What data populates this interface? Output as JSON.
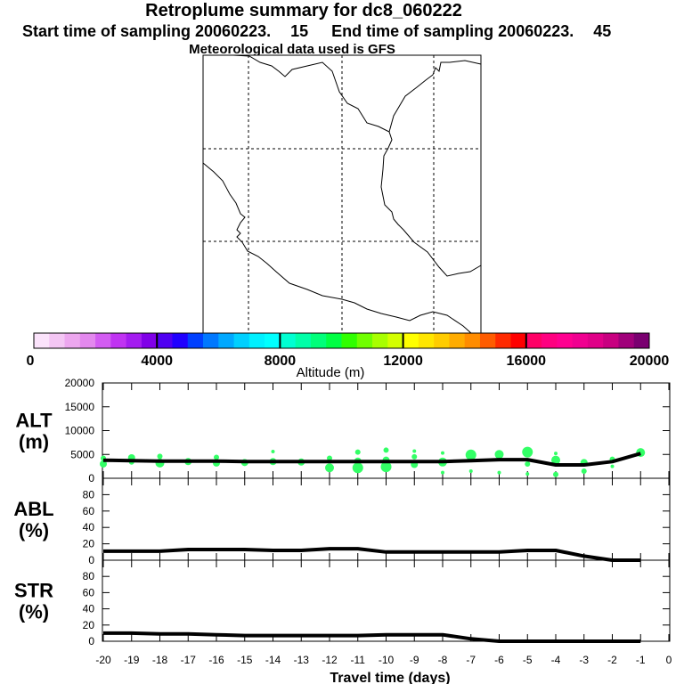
{
  "header": {
    "title": "Retroplume summary for dc8_060222",
    "start_label": "Start time of sampling 20060223.",
    "start_value": "15",
    "end_label": "End time of sampling 20060223.",
    "end_value": "45",
    "met_label": "Meteorological data used is GFS"
  },
  "colorbar": {
    "title": "Altitude (m)",
    "ticks": [
      "0",
      "4000",
      "8000",
      "12000",
      "16000",
      "20000"
    ],
    "colors": [
      "#fbe3fb",
      "#f4c6f4",
      "#eda7ef",
      "#e388ee",
      "#d35cf2",
      "#c033f2",
      "#a41cf0",
      "#8000e8",
      "#4f00f2",
      "#2000ff",
      "#0040ff",
      "#0078ff",
      "#00a8ff",
      "#00d0ff",
      "#00f0ff",
      "#00ffff",
      "#00ffd2",
      "#00ffa8",
      "#00ff7a",
      "#00ff44",
      "#30ff00",
      "#70ff00",
      "#a8ff00",
      "#d4ff00",
      "#ffff00",
      "#ffe600",
      "#ffcc00",
      "#ffac00",
      "#ff8c00",
      "#ff5c00",
      "#ff2a00",
      "#ff0000",
      "#ff0066",
      "#ff0080",
      "#ff0090",
      "#f00090",
      "#e00088",
      "#c80080",
      "#a0007a",
      "#7a0070"
    ]
  },
  "chart_data": [
    {
      "type": "scatter",
      "name": "ALT",
      "ylabel": "ALT\n(m)",
      "ylim": [
        0,
        20000
      ],
      "yticks": [
        "20000",
        "15000",
        "10000",
        "5000",
        "0"
      ],
      "mean_line": {
        "x": [
          -20,
          -19,
          -18,
          -17,
          -16,
          -15,
          -14,
          -13,
          -12,
          -11,
          -10,
          -9,
          -8,
          -7,
          -6,
          -5,
          -4,
          -3,
          -2,
          -1
        ],
        "y": [
          3800,
          3700,
          3600,
          3600,
          3600,
          3500,
          3500,
          3500,
          3500,
          3500,
          3500,
          3500,
          3500,
          3700,
          3900,
          3900,
          2800,
          2800,
          3500,
          5200
        ]
      },
      "points": [
        {
          "x": -20,
          "y": 3000,
          "s": 4
        },
        {
          "x": -20,
          "y": 4200,
          "s": 3
        },
        {
          "x": -19,
          "y": 4300,
          "s": 4
        },
        {
          "x": -19,
          "y": 3400,
          "s": 3
        },
        {
          "x": -18,
          "y": 3200,
          "s": 5
        },
        {
          "x": -18,
          "y": 4600,
          "s": 3
        },
        {
          "x": -17,
          "y": 3500,
          "s": 4
        },
        {
          "x": -16,
          "y": 3200,
          "s": 4
        },
        {
          "x": -16,
          "y": 4400,
          "s": 3
        },
        {
          "x": -15,
          "y": 3300,
          "s": 4
        },
        {
          "x": -14,
          "y": 3500,
          "s": 4
        },
        {
          "x": -14,
          "y": 5600,
          "s": 2
        },
        {
          "x": -13,
          "y": 3400,
          "s": 4
        },
        {
          "x": -12,
          "y": 2200,
          "s": 5
        },
        {
          "x": -12,
          "y": 4200,
          "s": 3
        },
        {
          "x": -11,
          "y": 2200,
          "s": 6
        },
        {
          "x": -11,
          "y": 3600,
          "s": 4
        },
        {
          "x": -11,
          "y": 5500,
          "s": 3
        },
        {
          "x": -10,
          "y": 2400,
          "s": 6
        },
        {
          "x": -10,
          "y": 3800,
          "s": 4
        },
        {
          "x": -10,
          "y": 5900,
          "s": 3
        },
        {
          "x": -9,
          "y": 2900,
          "s": 4
        },
        {
          "x": -9,
          "y": 4500,
          "s": 3
        },
        {
          "x": -9,
          "y": 5700,
          "s": 2
        },
        {
          "x": -8,
          "y": 3400,
          "s": 5
        },
        {
          "x": -8,
          "y": 1200,
          "s": 2
        },
        {
          "x": -8,
          "y": 5300,
          "s": 2
        },
        {
          "x": -7,
          "y": 4900,
          "s": 6
        },
        {
          "x": -7,
          "y": 1500,
          "s": 2
        },
        {
          "x": -6,
          "y": 5000,
          "s": 5
        },
        {
          "x": -6,
          "y": 1200,
          "s": 2
        },
        {
          "x": -5,
          "y": 5500,
          "s": 6
        },
        {
          "x": -5,
          "y": 3000,
          "s": 3
        },
        {
          "x": -5,
          "y": 900,
          "s": 2
        },
        {
          "x": -4,
          "y": 3800,
          "s": 5
        },
        {
          "x": -4,
          "y": 5200,
          "s": 2
        },
        {
          "x": -4,
          "y": 800,
          "s": 3
        },
        {
          "x": -3,
          "y": 3300,
          "s": 4
        },
        {
          "x": -3,
          "y": 1500,
          "s": 3
        },
        {
          "x": -2,
          "y": 4000,
          "s": 3
        },
        {
          "x": -2,
          "y": 2500,
          "s": 2
        },
        {
          "x": -1,
          "y": 5400,
          "s": 5
        }
      ],
      "point_color": "#33ff66"
    },
    {
      "type": "line",
      "name": "ABL",
      "ylabel": "ABL\n(%)",
      "ylim": [
        0,
        100
      ],
      "yticks": [
        "80",
        "60",
        "40",
        "20",
        "0"
      ],
      "x": [
        -20,
        -19,
        -18,
        -17,
        -16,
        -15,
        -14,
        -13,
        -12,
        -11,
        -10,
        -9,
        -8,
        -7,
        -6,
        -5,
        -4,
        -3,
        -2,
        -1
      ],
      "y": [
        11,
        11,
        11,
        13,
        13,
        13,
        12,
        12,
        14,
        14,
        10,
        10,
        10,
        10,
        10,
        12,
        12,
        5,
        0,
        0
      ]
    },
    {
      "type": "line",
      "name": "STR",
      "ylabel": "STR\n(%)",
      "ylim": [
        0,
        100
      ],
      "yticks": [
        "80",
        "60",
        "40",
        "20",
        "0"
      ],
      "x": [
        -20,
        -19,
        -18,
        -17,
        -16,
        -15,
        -14,
        -13,
        -12,
        -11,
        -10,
        -9,
        -8,
        -7,
        -6,
        -5,
        -4,
        -3,
        -2,
        -1
      ],
      "y": [
        10,
        10,
        9,
        9,
        8,
        7,
        7,
        7,
        7,
        7,
        8,
        8,
        8,
        3,
        0,
        0,
        0,
        0,
        0,
        0
      ]
    }
  ],
  "xaxis": {
    "label": "Travel time (days)",
    "ticks": [
      "-20",
      "-19",
      "-18",
      "-17",
      "-16",
      "-15",
      "-14",
      "-13",
      "-12",
      "-11",
      "-10",
      "-9",
      "-8",
      "-7",
      "-6",
      "-5",
      "-4",
      "-3",
      "-2",
      "-1",
      "0"
    ]
  }
}
